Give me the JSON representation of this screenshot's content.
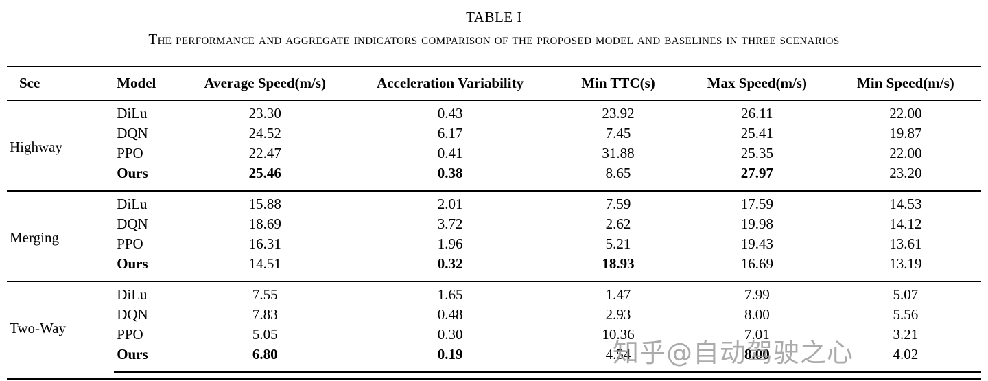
{
  "title": "TABLE I",
  "subtitle": "The performance and aggregate indicators comparison of the proposed model and baselines in three scenarios",
  "watermark": "知乎@自动驾驶之心",
  "table": {
    "columns": [
      "Sce",
      "Model",
      "Average Speed(m/s)",
      "Acceleration Variability",
      "Min TTC(s)",
      "Max Speed(m/s)",
      "Min Speed(m/s)"
    ],
    "groups": [
      {
        "scenario": "Highway",
        "rows": [
          {
            "model": "DiLu",
            "bold_model": false,
            "values": [
              "23.30",
              "0.43",
              "23.92",
              "26.11",
              "22.00"
            ],
            "bold": [
              false,
              false,
              false,
              false,
              false
            ]
          },
          {
            "model": "DQN",
            "bold_model": false,
            "values": [
              "24.52",
              "6.17",
              "7.45",
              "25.41",
              "19.87"
            ],
            "bold": [
              false,
              false,
              false,
              false,
              false
            ]
          },
          {
            "model": "PPO",
            "bold_model": false,
            "values": [
              "22.47",
              "0.41",
              "31.88",
              "25.35",
              "22.00"
            ],
            "bold": [
              false,
              false,
              false,
              false,
              false
            ]
          },
          {
            "model": "Ours",
            "bold_model": true,
            "values": [
              "25.46",
              "0.38",
              "8.65",
              "27.97",
              "23.20"
            ],
            "bold": [
              true,
              true,
              false,
              true,
              false
            ]
          }
        ]
      },
      {
        "scenario": "Merging",
        "rows": [
          {
            "model": "DiLu",
            "bold_model": false,
            "values": [
              "15.88",
              "2.01",
              "7.59",
              "17.59",
              "14.53"
            ],
            "bold": [
              false,
              false,
              false,
              false,
              false
            ]
          },
          {
            "model": "DQN",
            "bold_model": false,
            "values": [
              "18.69",
              "3.72",
              "2.62",
              "19.98",
              "14.12"
            ],
            "bold": [
              false,
              false,
              false,
              false,
              false
            ]
          },
          {
            "model": "PPO",
            "bold_model": false,
            "values": [
              "16.31",
              "1.96",
              "5.21",
              "19.43",
              "13.61"
            ],
            "bold": [
              false,
              false,
              false,
              false,
              false
            ]
          },
          {
            "model": "Ours",
            "bold_model": true,
            "values": [
              "14.51",
              "0.32",
              "18.93",
              "16.69",
              "13.19"
            ],
            "bold": [
              false,
              true,
              true,
              false,
              false
            ]
          }
        ]
      },
      {
        "scenario": "Two-Way",
        "rows": [
          {
            "model": "DiLu",
            "bold_model": false,
            "values": [
              "7.55",
              "1.65",
              "1.47",
              "7.99",
              "5.07"
            ],
            "bold": [
              false,
              false,
              false,
              false,
              false
            ]
          },
          {
            "model": "DQN",
            "bold_model": false,
            "values": [
              "7.83",
              "0.48",
              "2.93",
              "8.00",
              "5.56"
            ],
            "bold": [
              false,
              false,
              false,
              false,
              false
            ]
          },
          {
            "model": "PPO",
            "bold_model": false,
            "values": [
              "5.05",
              "0.30",
              "10.36",
              "7.01",
              "3.21"
            ],
            "bold": [
              false,
              false,
              false,
              false,
              false
            ]
          },
          {
            "model": "Ours",
            "bold_model": true,
            "values": [
              "6.80",
              "0.19",
              "4.54",
              "8.00",
              "4.02"
            ],
            "bold": [
              true,
              true,
              false,
              true,
              false
            ]
          }
        ]
      }
    ]
  }
}
